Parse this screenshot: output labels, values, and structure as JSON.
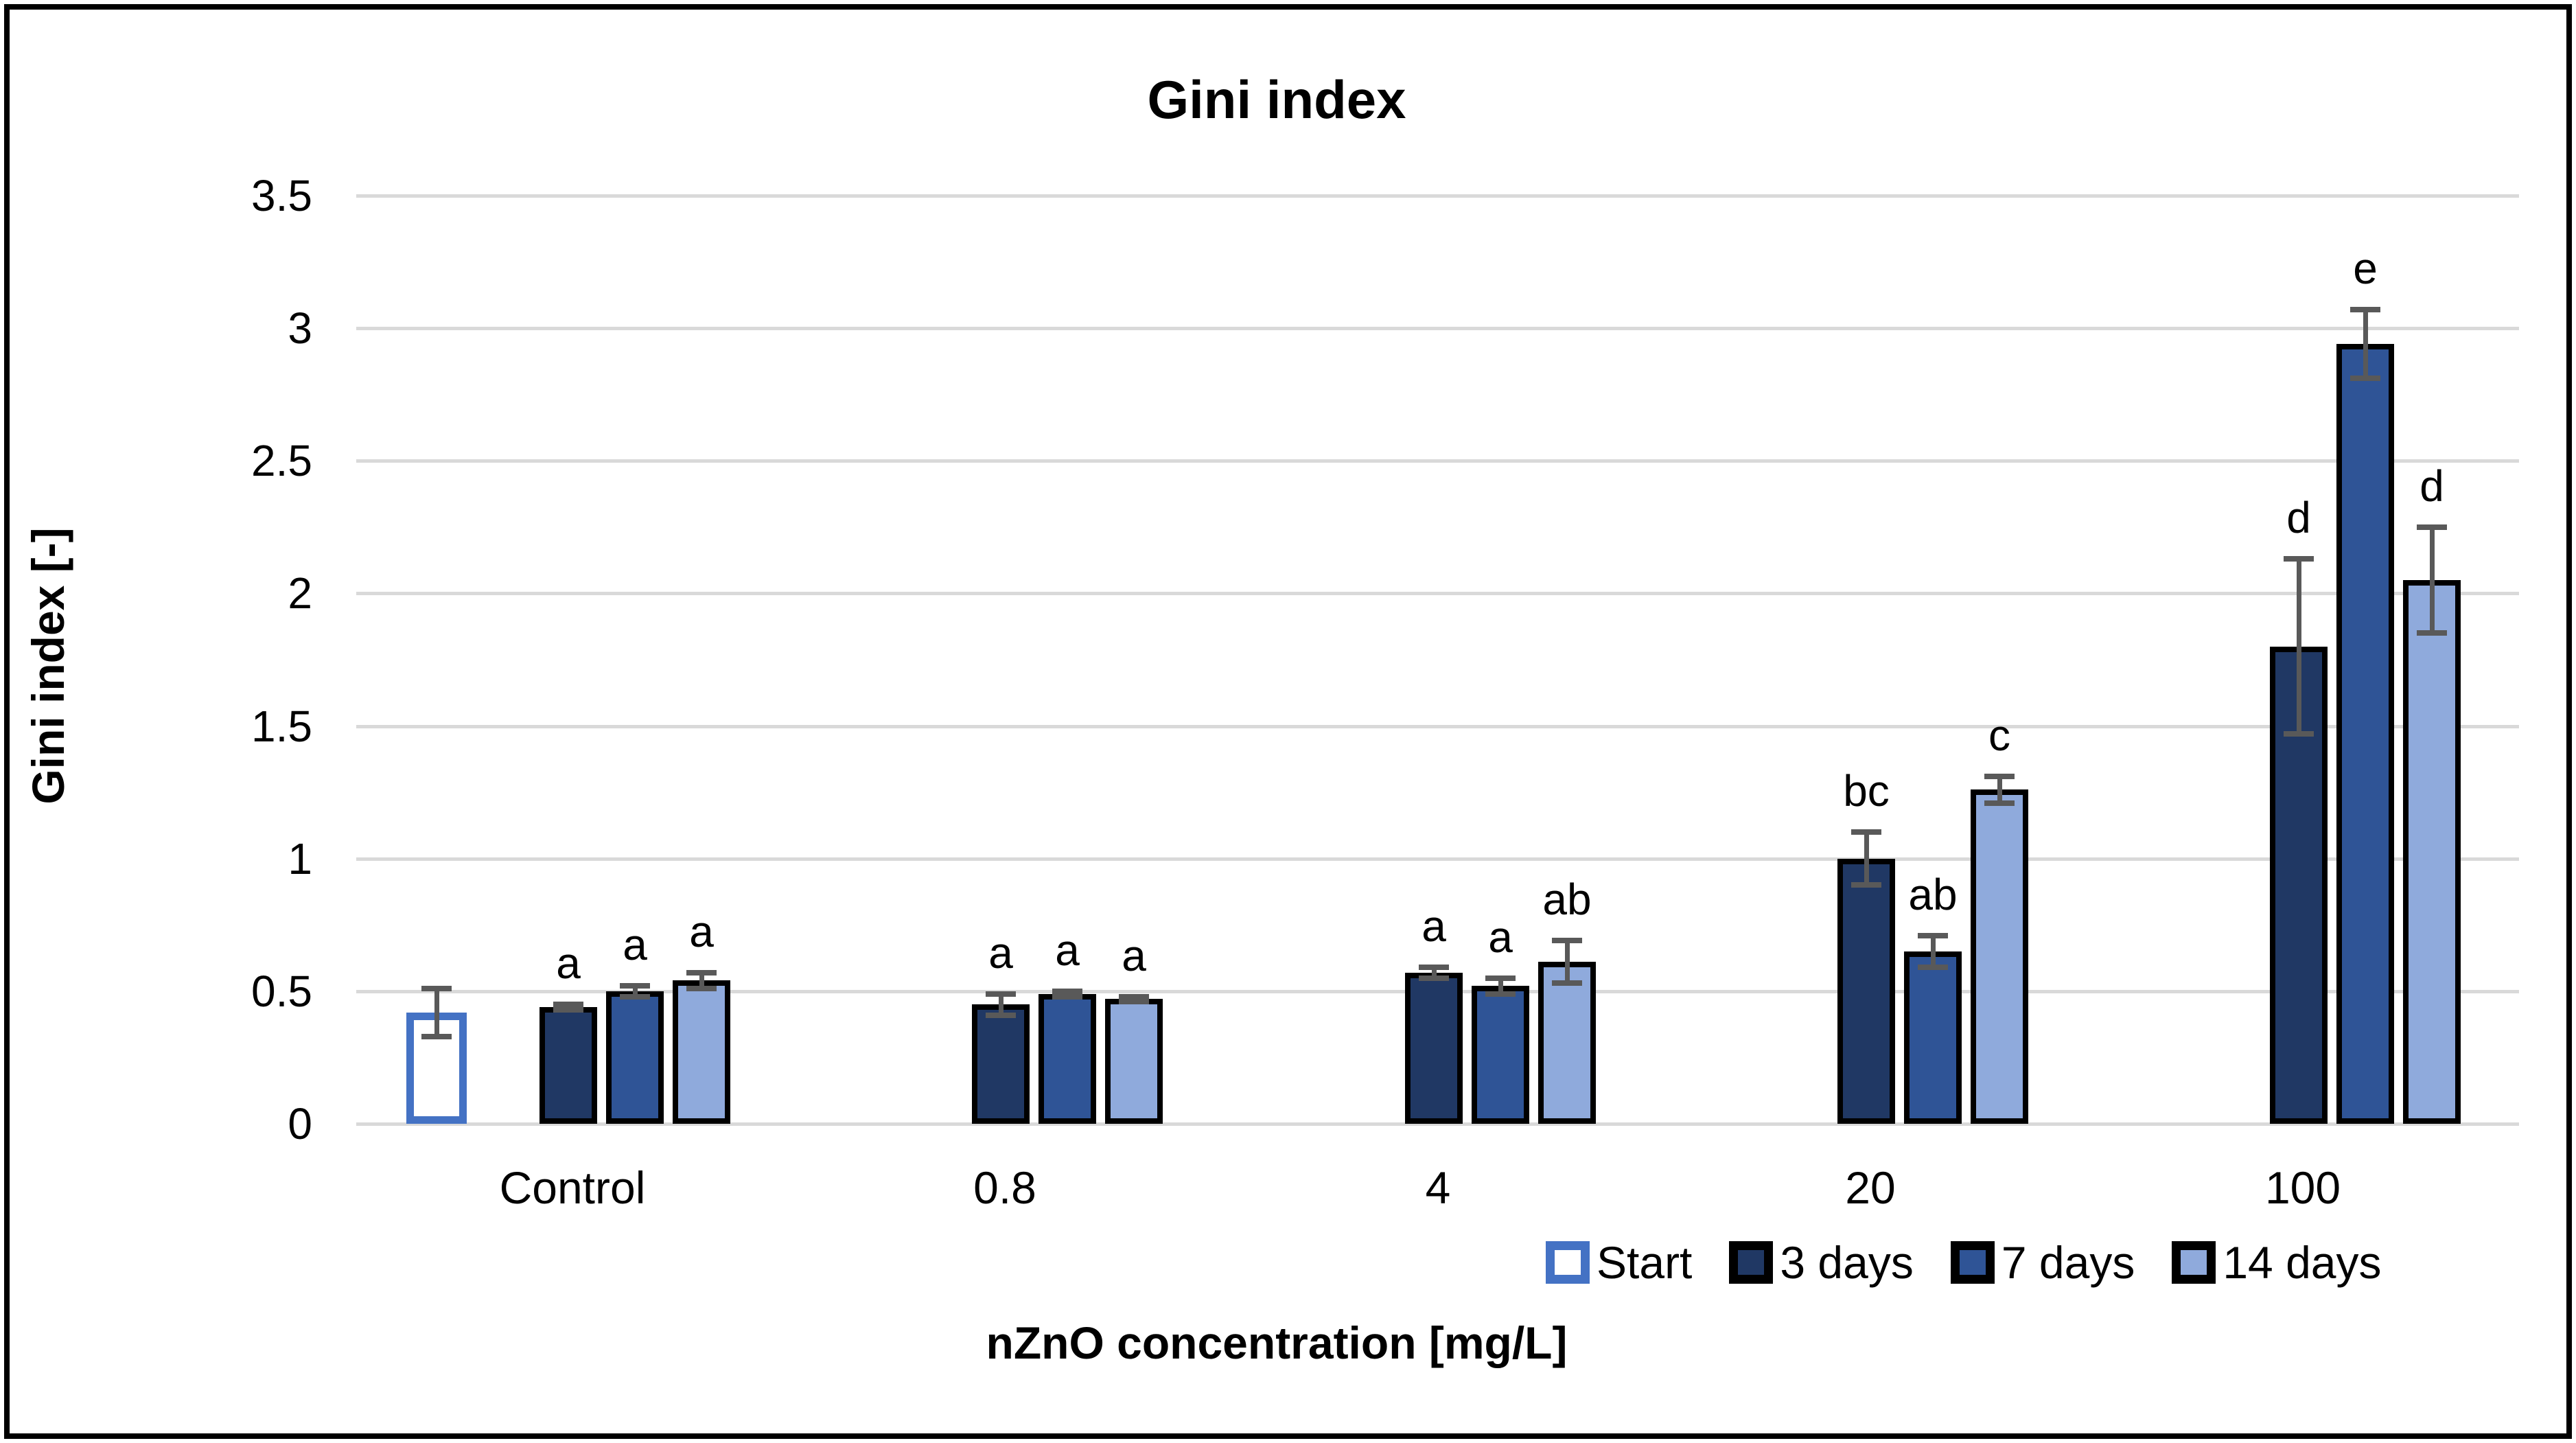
{
  "chart_data": {
    "type": "bar",
    "title": "Gini index",
    "xlabel": "nZnO concentration [mg/L]",
    "ylabel": "Gini index [-]",
    "ylim": [
      0,
      3.5
    ],
    "ytick_step": 0.5,
    "ytick_labels": [
      "0",
      "0.5",
      "1",
      "1.5",
      "2",
      "2.5",
      "3",
      "3.5"
    ],
    "grid": true,
    "gridline_color": "#D9D9D9",
    "error_bar_color": "#595959",
    "legend_position": "bottom-right",
    "categories": [
      "Control",
      "0.8",
      "4",
      "20",
      "100"
    ],
    "series": [
      {
        "name": "Start",
        "fill": "#FFFFFF",
        "border": "#4472C4",
        "values": [
          0.42,
          null,
          null,
          null,
          null
        ],
        "errors": [
          0.09,
          null,
          null,
          null,
          null
        ],
        "letters": [
          "",
          "",
          "",
          "",
          ""
        ]
      },
      {
        "name": "3 days",
        "fill": "#203864",
        "border": "#000000",
        "values": [
          0.44,
          0.45,
          0.57,
          1.0,
          1.8
        ],
        "errors": [
          0.01,
          0.04,
          0.02,
          0.1,
          0.33
        ],
        "letters": [
          "a",
          "a",
          "a",
          "bc",
          "d"
        ]
      },
      {
        "name": "7 days",
        "fill": "#2F5496",
        "border": "#000000",
        "values": [
          0.5,
          0.49,
          0.52,
          0.65,
          2.94
        ],
        "errors": [
          0.02,
          0.01,
          0.03,
          0.06,
          0.13
        ],
        "letters": [
          "a",
          "a",
          "a",
          "ab",
          "e"
        ]
      },
      {
        "name": "14 days",
        "fill": "#8FAADC",
        "border": "#000000",
        "values": [
          0.54,
          0.47,
          0.61,
          1.26,
          2.05
        ],
        "errors": [
          0.03,
          0.01,
          0.08,
          0.05,
          0.2
        ],
        "letters": [
          "a",
          "a",
          "ab",
          "c",
          "d"
        ]
      }
    ]
  }
}
